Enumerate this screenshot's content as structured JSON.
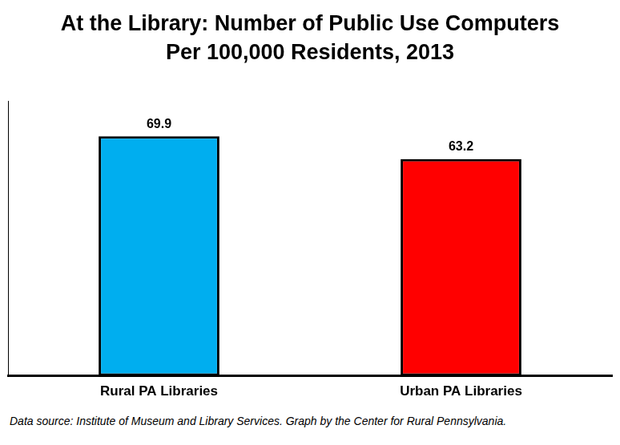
{
  "chart_data": {
    "type": "bar",
    "title": [
      "At the Library: Number of Public Use Computers",
      "Per 100,000 Residents, 2013"
    ],
    "categories": [
      "Rural PA Libraries",
      "Urban PA Libraries"
    ],
    "values": [
      69.9,
      63.2
    ],
    "colors": [
      "#00AEEF",
      "#FF0000"
    ],
    "ylim": [
      0,
      80
    ],
    "grid": false,
    "data_labels": true,
    "tick_labels": "x",
    "source": "Data source: Institute of Museum and Library Services. Graph by the Center for Rural Pennsylvania."
  }
}
